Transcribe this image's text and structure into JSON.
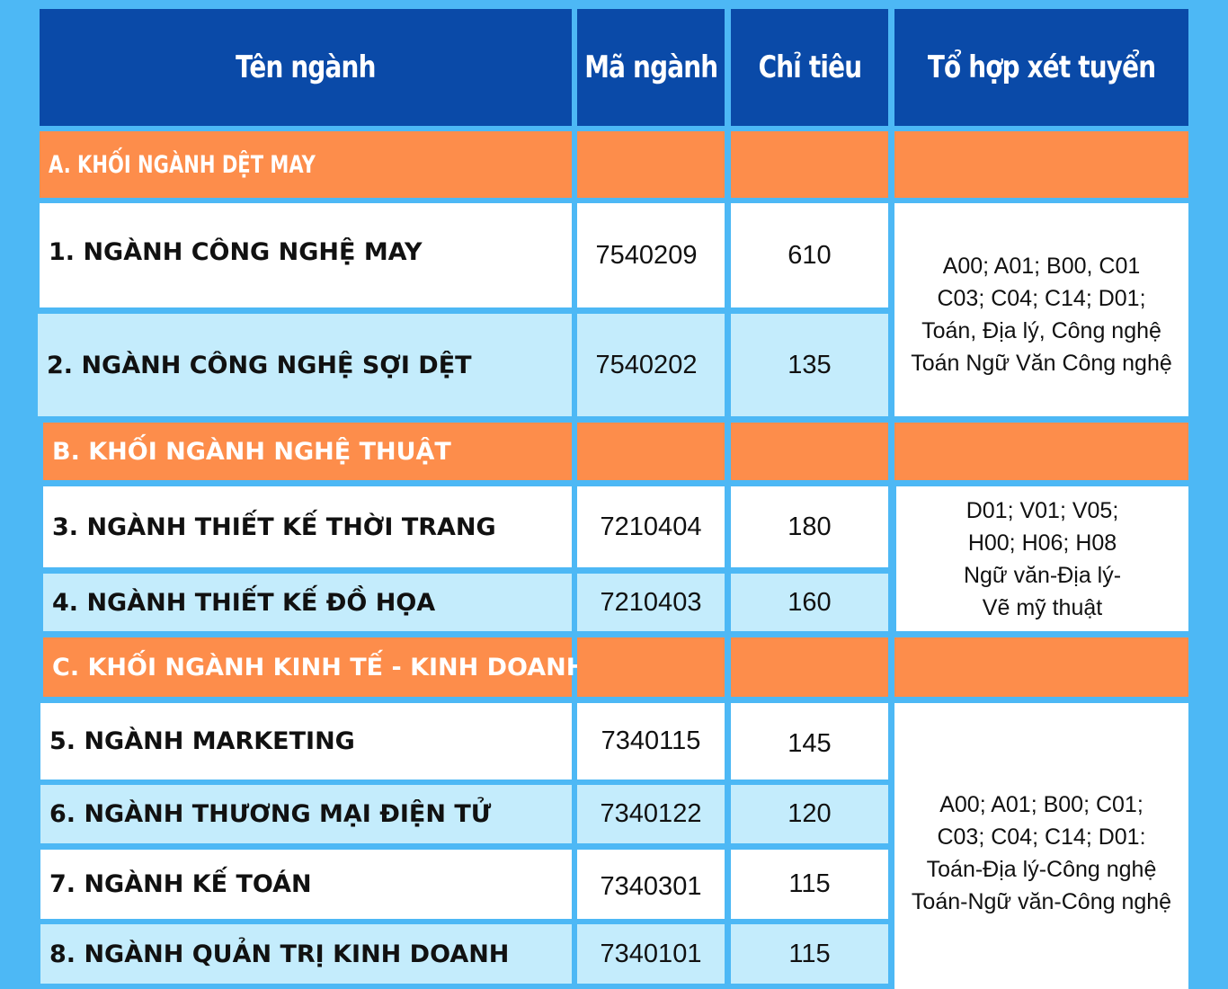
{
  "header": {
    "name": "Tên ngành",
    "code": "Mã ngành",
    "quota": "Chỉ tiêu",
    "combination": "Tổ hợp xét tuyển"
  },
  "sections": [
    {
      "label": "A. KHỐI NGÀNH DỆT MAY",
      "rows": [
        {
          "name": "1. NGÀNH CÔNG NGHỆ  MAY",
          "code": "7540209",
          "quota": "610"
        },
        {
          "name": "2. NGÀNH CÔNG NGHỆ SỢI DỆT",
          "code": "7540202",
          "quota": "135"
        }
      ],
      "combination_lines": [
        "A00; A01; B00, C01",
        "C03; C04; C14; D01;",
        "Toán, Địa lý, Công nghệ",
        "Toán Ngữ Văn Công nghệ"
      ]
    },
    {
      "label": "B. KHỐI NGÀNH NGHỆ THUẬT",
      "rows": [
        {
          "name": "3. NGÀNH THIẾT KẾ THỜI TRANG",
          "code": "7210404",
          "quota": "180"
        },
        {
          "name": "4. NGÀNH THIẾT KẾ ĐỒ HỌA",
          "code": "7210403",
          "quota": "160"
        }
      ],
      "combination_lines": [
        "D01; V01; V05;",
        "H00; H06; H08",
        "Ngữ văn-Địa lý-",
        "Vẽ mỹ thuật"
      ]
    },
    {
      "label": "C. KHỐI NGÀNH KINH TẾ - KINH DOANH",
      "rows": [
        {
          "name": "5. NGÀNH MARKETING",
          "code": "7340115",
          "quota": "145"
        },
        {
          "name": "6. NGÀNH THƯƠNG MẠI ĐIỆN TỬ",
          "code": "7340122",
          "quota": "120"
        },
        {
          "name": "7. NGÀNH KẾ TOÁN",
          "code": "7340301",
          "quota": "115"
        },
        {
          "name": "8. NGÀNH QUẢN TRỊ KINH DOANH",
          "code": "7340101",
          "quota": "115"
        }
      ],
      "combination_lines": [
        "A00; A01; B00; C01;",
        "C03; C04; C14; D01:",
        "Toán-Địa lý-Công nghệ",
        "Toán-Ngữ văn-Công nghệ"
      ]
    }
  ],
  "colors": {
    "background": "#4db8f5",
    "header": "#0a4aa8",
    "section": "#fd8d4b",
    "row_alt": "#c4ecfc",
    "row": "#ffffff"
  }
}
